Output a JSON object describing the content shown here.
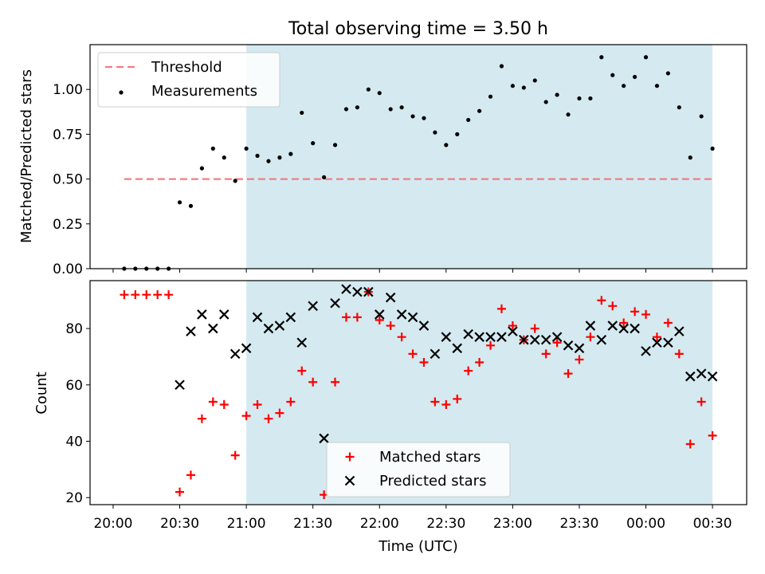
{
  "title": "Total observing time = 3.50 h",
  "xlabel": "Time (UTC)",
  "x_ticks": [
    "20:00",
    "20:30",
    "21:00",
    "21:30",
    "22:00",
    "22:30",
    "23:00",
    "23:30",
    "00:00",
    "00:30"
  ],
  "colors": {
    "shade": "#d4eaf0",
    "threshold": "#f27e7e",
    "measurement": "#000000",
    "matched": "#ff0000",
    "predicted": "#000000"
  },
  "chart_data": [
    {
      "type": "scatter",
      "ylabel": "Matched/Predicted stars",
      "ylim": [
        0,
        1.25
      ],
      "y_ticks": [
        "0.00",
        "0.25",
        "0.50",
        "0.75",
        "1.00"
      ],
      "x_unit": "minutes after 20:00 UTC",
      "observing_window": [
        60,
        270
      ],
      "legend": {
        "placement": "top-left",
        "threshold_label": "Threshold",
        "measurements_label": "Measurements"
      },
      "threshold": 0.5,
      "threshold_range": [
        5,
        270
      ],
      "series": [
        {
          "name": "Measurements",
          "x": [
            5,
            10,
            15,
            20,
            25,
            30,
            35,
            40,
            45,
            50,
            55,
            60,
            65,
            70,
            75,
            80,
            85,
            90,
            95,
            100,
            105,
            110,
            115,
            120,
            125,
            130,
            135,
            140,
            145,
            150,
            155,
            160,
            165,
            170,
            175,
            180,
            185,
            190,
            195,
            200,
            205,
            210,
            215,
            220,
            225,
            230,
            235,
            240,
            245,
            250,
            255,
            260,
            265,
            270
          ],
          "y": [
            0,
            0,
            0,
            0,
            0,
            0.37,
            0.35,
            0.56,
            0.67,
            0.62,
            0.49,
            0.67,
            0.63,
            0.6,
            0.62,
            0.64,
            0.87,
            0.7,
            0.51,
            0.69,
            0.89,
            0.9,
            1.0,
            0.98,
            0.89,
            0.9,
            0.85,
            0.84,
            0.76,
            0.69,
            0.75,
            0.83,
            0.88,
            0.96,
            1.13,
            1.02,
            1.01,
            1.05,
            0.93,
            0.97,
            0.86,
            0.95,
            0.95,
            1.18,
            1.08,
            1.02,
            1.07,
            1.18,
            1.02,
            1.09,
            0.9,
            0.62,
            0.85,
            0.67
          ]
        }
      ]
    },
    {
      "type": "scatter",
      "ylabel": "Count",
      "ylim": [
        17.5,
        97
      ],
      "y_ticks": [
        "20",
        "40",
        "60",
        "80"
      ],
      "x_unit": "minutes after 20:00 UTC",
      "observing_window": [
        60,
        270
      ],
      "legend": {
        "placement": "bottom-center"
      },
      "series": [
        {
          "name": "Matched stars",
          "marker": "+",
          "x": [
            5,
            10,
            15,
            20,
            25,
            30,
            35,
            40,
            45,
            50,
            55,
            60,
            65,
            70,
            75,
            80,
            85,
            90,
            95,
            100,
            105,
            110,
            115,
            120,
            125,
            130,
            135,
            140,
            145,
            150,
            155,
            160,
            165,
            170,
            175,
            180,
            185,
            190,
            195,
            200,
            205,
            210,
            215,
            220,
            225,
            230,
            235,
            240,
            245,
            250,
            255,
            260,
            265,
            270
          ],
          "y": [
            92,
            92,
            92,
            92,
            92,
            22,
            28,
            48,
            54,
            53,
            35,
            49,
            53,
            48,
            50,
            54,
            65,
            61,
            21,
            61,
            84,
            84,
            93,
            83,
            81,
            77,
            71,
            68,
            54,
            53,
            55,
            65,
            68,
            74,
            87,
            81,
            76,
            80,
            71,
            75,
            64,
            69,
            77,
            90,
            88,
            82,
            86,
            85,
            77,
            82,
            71,
            39,
            54,
            42
          ]
        },
        {
          "name": "Predicted stars",
          "marker": "x",
          "x": [
            30,
            35,
            40,
            45,
            50,
            55,
            60,
            65,
            70,
            75,
            80,
            85,
            90,
            95,
            100,
            105,
            110,
            115,
            120,
            125,
            130,
            135,
            140,
            145,
            150,
            155,
            160,
            165,
            170,
            175,
            180,
            185,
            190,
            195,
            200,
            205,
            210,
            215,
            220,
            225,
            230,
            235,
            240,
            245,
            250,
            255,
            260,
            265,
            270
          ],
          "y": [
            60,
            79,
            85,
            80,
            85,
            71,
            73,
            84,
            80,
            81,
            84,
            75,
            88,
            41,
            89,
            94,
            93,
            93,
            85,
            91,
            85,
            84,
            81,
            71,
            77,
            73,
            78,
            77,
            77,
            77,
            79,
            76,
            76,
            76,
            77,
            74,
            73,
            81,
            76,
            81,
            80,
            80,
            72,
            75,
            75,
            79,
            63,
            64,
            63
          ]
        }
      ]
    }
  ]
}
